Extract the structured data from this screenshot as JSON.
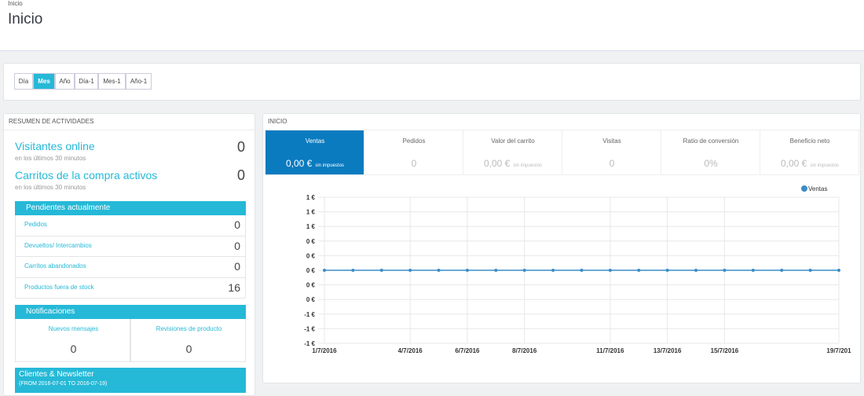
{
  "header": {
    "breadcrumb": "Inicio",
    "title": "Inicio"
  },
  "period_buttons": [
    "Día",
    "Mes",
    "Año",
    "Día-1",
    "Mes-1",
    "Año-1"
  ],
  "activity": {
    "title": "RESUMEN DE ACTIVIDADES",
    "online": {
      "label": "Visitantes online",
      "note": "en los últimos 30 minutos",
      "value": 0
    },
    "carts": {
      "label": "Carritos de la compra activos",
      "note": "en los últimos 30 minutos",
      "value": 0
    },
    "pending": {
      "title": "Pendientes actualmente",
      "rows": [
        {
          "label": "Pedidos",
          "value": 0
        },
        {
          "label": "Devueltos/ Intercambios",
          "value": 0
        },
        {
          "label": "Carritos abandonados",
          "value": 0
        },
        {
          "label": "Productos fuera de stock",
          "value": 16
        }
      ]
    },
    "notifications": {
      "title": "Notificaciones",
      "items": [
        {
          "label": "Nuevos mensajes",
          "value": 0
        },
        {
          "label": "Revisiones de producto",
          "value": 0
        }
      ]
    },
    "customers": {
      "title": "Clientes & Newsletter",
      "range": "(FROM 2016-07-01 TO 2016-07-19)"
    }
  },
  "dashboard": {
    "title": "INICIO",
    "kpis": [
      {
        "label": "Ventas",
        "value": "0,00 €",
        "note": "sin impuestos"
      },
      {
        "label": "Pedidos",
        "value": "0"
      },
      {
        "label": "Valor del carrito",
        "value": "0,00 €",
        "note": "sin impuestos"
      },
      {
        "label": "Visitas",
        "value": "0"
      },
      {
        "label": "Ratio de conversión",
        "value": "0%"
      },
      {
        "label": "Beneficio neto",
        "value": "0,00 €",
        "note": "sin impuestos"
      }
    ]
  },
  "chart_data": {
    "type": "line",
    "x": [
      1,
      2,
      3,
      4,
      5,
      6,
      7,
      8,
      9,
      10,
      11,
      12,
      13,
      14,
      15,
      16,
      17,
      18,
      19
    ],
    "series": [
      {
        "name": "Ventas",
        "color": "#3c8dc5",
        "values": [
          0,
          0,
          0,
          0,
          0,
          0,
          0,
          0,
          0,
          0,
          0,
          0,
          0,
          0,
          0,
          0,
          0,
          0,
          0
        ]
      }
    ],
    "xlim": [
      1,
      19
    ],
    "xticks": [
      {
        "value": 1,
        "label": "1/7/2016"
      },
      {
        "value": 4,
        "label": "4/7/2016"
      },
      {
        "value": 6,
        "label": "6/7/2016"
      },
      {
        "value": 8,
        "label": "8/7/2016"
      },
      {
        "value": 11,
        "label": "11/7/2016"
      },
      {
        "value": 13,
        "label": "13/7/2016"
      },
      {
        "value": 15,
        "label": "15/7/2016"
      },
      {
        "value": 19,
        "label": "19/7/201"
      }
    ],
    "ylim": [
      -1,
      1
    ],
    "yticks": [
      {
        "value": 1,
        "label": "1 €"
      },
      {
        "value": 0.8,
        "label": "1 €"
      },
      {
        "value": 0.6,
        "label": "1 €"
      },
      {
        "value": 0.4,
        "label": "0 €"
      },
      {
        "value": 0.2,
        "label": "0 €"
      },
      {
        "value": 0,
        "label": "0 €"
      },
      {
        "value": -0.2,
        "label": "0 €"
      },
      {
        "value": -0.4,
        "label": "0 €"
      },
      {
        "value": -0.6,
        "label": "-1 €"
      },
      {
        "value": -0.8,
        "label": "-1 €"
      },
      {
        "value": -1,
        "label": "-1 €"
      }
    ],
    "grid": true,
    "legend": "top-right"
  }
}
